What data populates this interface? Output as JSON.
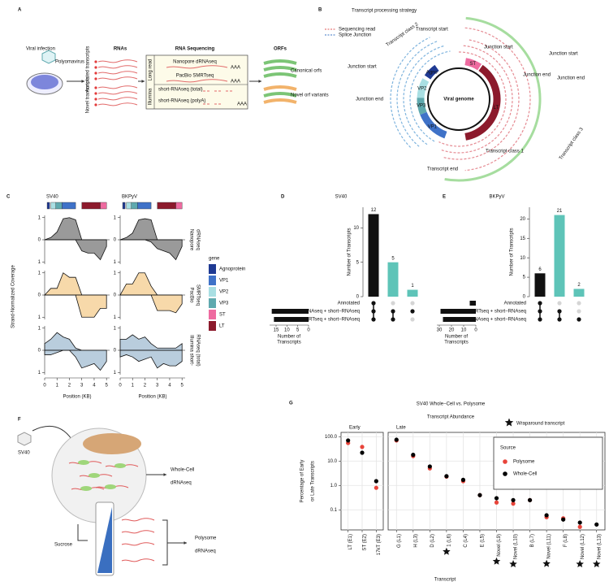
{
  "panel_a": {
    "letter": "A",
    "viral_infection": "Viral infection",
    "polyomavirus": "Polyomavirus",
    "rnas": "RNAs",
    "annotated": "Annotated transcripts",
    "novel": "Novel transcripts",
    "rna_sequencing": "RNA Sequencing",
    "long_read": "Long read",
    "nanopore": "Nanopore dRNAseq",
    "pacbio": "PacBio SMRTseq",
    "illumina": "Illumina",
    "short_total": "short-RNAseq (total)",
    "short_polya": "short-RNAseq (polyA)",
    "polya_tail": "AAA",
    "orfs": "ORFs",
    "canonical": "Canonical orfs",
    "novel_orf": "Novel orf variants"
  },
  "panel_b": {
    "letter": "B",
    "title": "Transcript processing strategy",
    "legend": [
      "Sequencing read",
      "Splice Junction"
    ],
    "viral_genome": "Viral genome",
    "genes": [
      "Agno",
      "VP1",
      "VP2",
      "VP3",
      "ST",
      "LT"
    ],
    "transcript_start": "Transcript start",
    "junction_start": "Junction start",
    "junction_end": "Junction end",
    "transcript_end": "Transcript end",
    "classes": [
      "Transcript class 1",
      "Transcript class 2",
      "Transcript class 3"
    ]
  },
  "panel_f": {
    "letter": "F",
    "virus": "SV40",
    "whole_cell": [
      "Whole-Cell",
      "dRNAseq"
    ],
    "sucrose": "Sucrose",
    "polysome": [
      "Polysome",
      "dRNAseq"
    ]
  },
  "gene_legend": {
    "title": "gene",
    "items": [
      {
        "name": "Agnoprotein",
        "color": "#1f3a93"
      },
      {
        "name": "VP1",
        "color": "#3f72c8"
      },
      {
        "name": "VP2",
        "color": "#a9dfe3"
      },
      {
        "name": "VP3",
        "color": "#5fa9ae"
      },
      {
        "name": "ST",
        "color": "#ee6ba0"
      },
      {
        "name": "LT",
        "color": "#8c1a2c"
      }
    ]
  },
  "chart_data": [
    {
      "type": "coverage",
      "letter": "C",
      "title": "SV40",
      "ylabel": "Strand-Normalized Coverage",
      "xlabel": "Position (KB)",
      "x": [
        0,
        0.5,
        1,
        1.5,
        2,
        2.5,
        3,
        3.5,
        4,
        4.5,
        5
      ],
      "xlim": [
        0,
        5.25
      ],
      "xticks": [
        0,
        1,
        2,
        3,
        4,
        5
      ],
      "ylim": [
        -1.1,
        1.1
      ],
      "yticks": [
        {
          "value": -1,
          "label": "1"
        },
        0,
        1
      ],
      "rows": [
        {
          "series": [
            {
              "color": "#9a9a9a",
              "values": [
                0,
                0.1,
                0.35,
                0.95,
                1,
                0.9,
                0,
                0,
                0,
                0,
                0
              ]
            },
            {
              "color": "#9a9a9a",
              "values": [
                0,
                0,
                0,
                0,
                0,
                0,
                -0.5,
                -0.6,
                -0.6,
                -0.9,
                -0.3
              ]
            }
          ]
        },
        {
          "series": [
            {
              "color": "#f7d9aa",
              "values": [
                0,
                0.3,
                0.3,
                1,
                0.8,
                0.8,
                0,
                0,
                0,
                0,
                0
              ]
            },
            {
              "color": "#f7d9aa",
              "values": [
                0,
                0,
                0,
                0,
                0,
                0,
                -1,
                -1,
                -1,
                -0.6,
                -0.6
              ]
            }
          ]
        },
        {
          "series": [
            {
              "color": "#b9cddd",
              "values": [
                0.3,
                0.5,
                0.8,
                0.6,
                0.5,
                0.1,
                0,
                0,
                0,
                0,
                0
              ]
            },
            {
              "color": "#b9cddd",
              "values": [
                -0.2,
                -0.2,
                -0.1,
                0,
                0,
                -0.3,
                -0.8,
                -0.7,
                -0.6,
                -0.9,
                -0.5
              ]
            }
          ]
        }
      ]
    },
    {
      "type": "coverage",
      "title": "BKPyV",
      "xlabel": "Position (KB)",
      "x": [
        0,
        0.5,
        1,
        1.5,
        2,
        2.5,
        3,
        3.5,
        4,
        4.5,
        5
      ],
      "xlim": [
        0,
        5.25
      ],
      "xticks": [
        0,
        1,
        2,
        3,
        4,
        5
      ],
      "ylim": [
        -1.1,
        1.1
      ],
      "yticks": [
        {
          "value": -1,
          "label": "1"
        },
        0,
        1
      ],
      "rows": [
        {
          "label": [
            "Nanopore",
            "dRNAseq"
          ],
          "series": [
            {
              "color": "#9a9a9a",
              "values": [
                0,
                0.1,
                0.3,
                0.9,
                0.95,
                0.9,
                0,
                0,
                0,
                0,
                0
              ]
            },
            {
              "color": "#9a9a9a",
              "values": [
                0,
                0,
                0,
                0,
                0,
                -0.1,
                -0.4,
                -0.5,
                -0.6,
                -0.9,
                -0.3
              ]
            }
          ]
        },
        {
          "label": [
            "PacBio",
            "SMRTseq"
          ],
          "series": [
            {
              "color": "#f7d9aa",
              "values": [
                0,
                0.5,
                0.5,
                1,
                1,
                0.4,
                0,
                0,
                0,
                0,
                0
              ]
            },
            {
              "color": "#f7d9aa",
              "values": [
                0,
                0,
                0,
                0,
                0,
                0,
                -0.7,
                -0.7,
                -0.7,
                -0.8,
                -0.4
              ]
            }
          ]
        },
        {
          "label": [
            "Illumina short-",
            "RNAseq (total)"
          ],
          "series": [
            {
              "color": "#b9cddd",
              "values": [
                0.5,
                0.5,
                0.7,
                0.5,
                0.6,
                0.3,
                0.1,
                0.1,
                0.1,
                0.1,
                0.3
              ]
            },
            {
              "color": "#b9cddd",
              "values": [
                -0.3,
                -0.2,
                -0.3,
                -0.5,
                -0.4,
                -0.3,
                -0.8,
                -0.6,
                -0.7,
                -0.7,
                -0.5
              ]
            }
          ]
        }
      ]
    },
    {
      "type": "upset",
      "letter": "D",
      "title": "SV40",
      "ylabel": "Number of Transcripts",
      "values": [
        12,
        5,
        1
      ],
      "colors": [
        "#111111",
        "#5ec4b8",
        "#5ec4b8"
      ],
      "ylim": [
        0,
        13
      ],
      "yticks": [
        0,
        5,
        10
      ],
      "sets": [
        "Annotated",
        "dRNAseq + short−RNAseq",
        "SMRTseq + short−RNAseq"
      ],
      "set_sizes": [
        0,
        17,
        16
      ],
      "set_xlim": [
        0,
        18
      ],
      "set_xticks": [
        15,
        10,
        5,
        0
      ],
      "set_xlabel": [
        "Number of",
        "Transcripts"
      ],
      "membership": [
        [
          0,
          1,
          2
        ],
        [
          1,
          2
        ],
        [
          1
        ]
      ]
    },
    {
      "type": "upset",
      "letter": "E",
      "title": "BKPyV",
      "ylabel": "Number of Transcripts",
      "values": [
        6,
        21,
        2
      ],
      "colors": [
        "#111111",
        "#5ec4b8",
        "#5ec4b8"
      ],
      "ylim": [
        0,
        23
      ],
      "yticks": [
        0,
        5,
        10,
        15,
        20
      ],
      "sets": [
        "Annotated",
        "SMRTseq + short−RNAseq",
        "dRNAseq + short−RNAseq"
      ],
      "set_sizes": [
        5,
        29,
        27
      ],
      "set_xlim": [
        0,
        32
      ],
      "set_xticks": [
        30,
        20,
        10,
        0
      ],
      "set_xlabel": [
        "Number of",
        "Transcripts"
      ],
      "membership": [
        [
          0,
          1,
          2
        ],
        [
          1,
          2
        ],
        [
          2
        ]
      ]
    },
    {
      "type": "dot",
      "letter": "G",
      "title": [
        "SV40 Whole−Cell vs. Polysome",
        "Transcript Abundance"
      ],
      "ylabel": [
        "Percentage of Early",
        "or Late Transcripts"
      ],
      "xlabel": "Transcript",
      "log_y": true,
      "grid": true,
      "ylim": [
        0.015,
        150
      ],
      "yticks": [
        {
          "value": 100,
          "label": "100.0"
        },
        {
          "value": 10,
          "label": "10.0"
        },
        {
          "value": 1,
          "label": "1.0"
        },
        0.1
      ],
      "legend_title": "Source",
      "wraparound_label": "Wraparound transcript",
      "facets": [
        {
          "name": "Early",
          "categories": [
            "LT (E1)",
            "ST (E2)",
            "17kT (E3)"
          ],
          "wraparound": [
            false,
            false,
            false
          ],
          "series": [
            {
              "name": "Polysome",
              "color": "#e8443a",
              "values": [
                55,
                38,
                0.8
              ]
            },
            {
              "name": "Whole-Cell",
              "color": "#000000",
              "values": [
                70,
                22,
                1.5
              ]
            }
          ]
        },
        {
          "name": "Late",
          "categories": [
            "G (L1)",
            "H (L3)",
            "D (L2)",
            "1 (L6)",
            "C (L4)",
            "E (L5)",
            "Novel (L9)",
            "Novel (L10)",
            "B (L7)",
            "Novel (L11)",
            "F (L8)",
            "Novel (L12)",
            "Novel (L13)"
          ],
          "wraparound": [
            false,
            false,
            false,
            true,
            false,
            false,
            true,
            true,
            false,
            true,
            false,
            true,
            true
          ],
          "series": [
            {
              "name": "Polysome",
              "color": "#e8443a",
              "values": [
                70,
                16,
                5,
                2.3,
                1.5,
                0.4,
                0.2,
                0.18,
                0.25,
                0.05,
                0.045,
                0.02,
                null
              ]
            },
            {
              "name": "Whole-Cell",
              "color": "#000000",
              "values": [
                75,
                18,
                6,
                2.4,
                1.7,
                0.4,
                0.3,
                0.25,
                0.25,
                0.06,
                0.04,
                0.03,
                0.025
              ]
            }
          ]
        }
      ]
    }
  ]
}
